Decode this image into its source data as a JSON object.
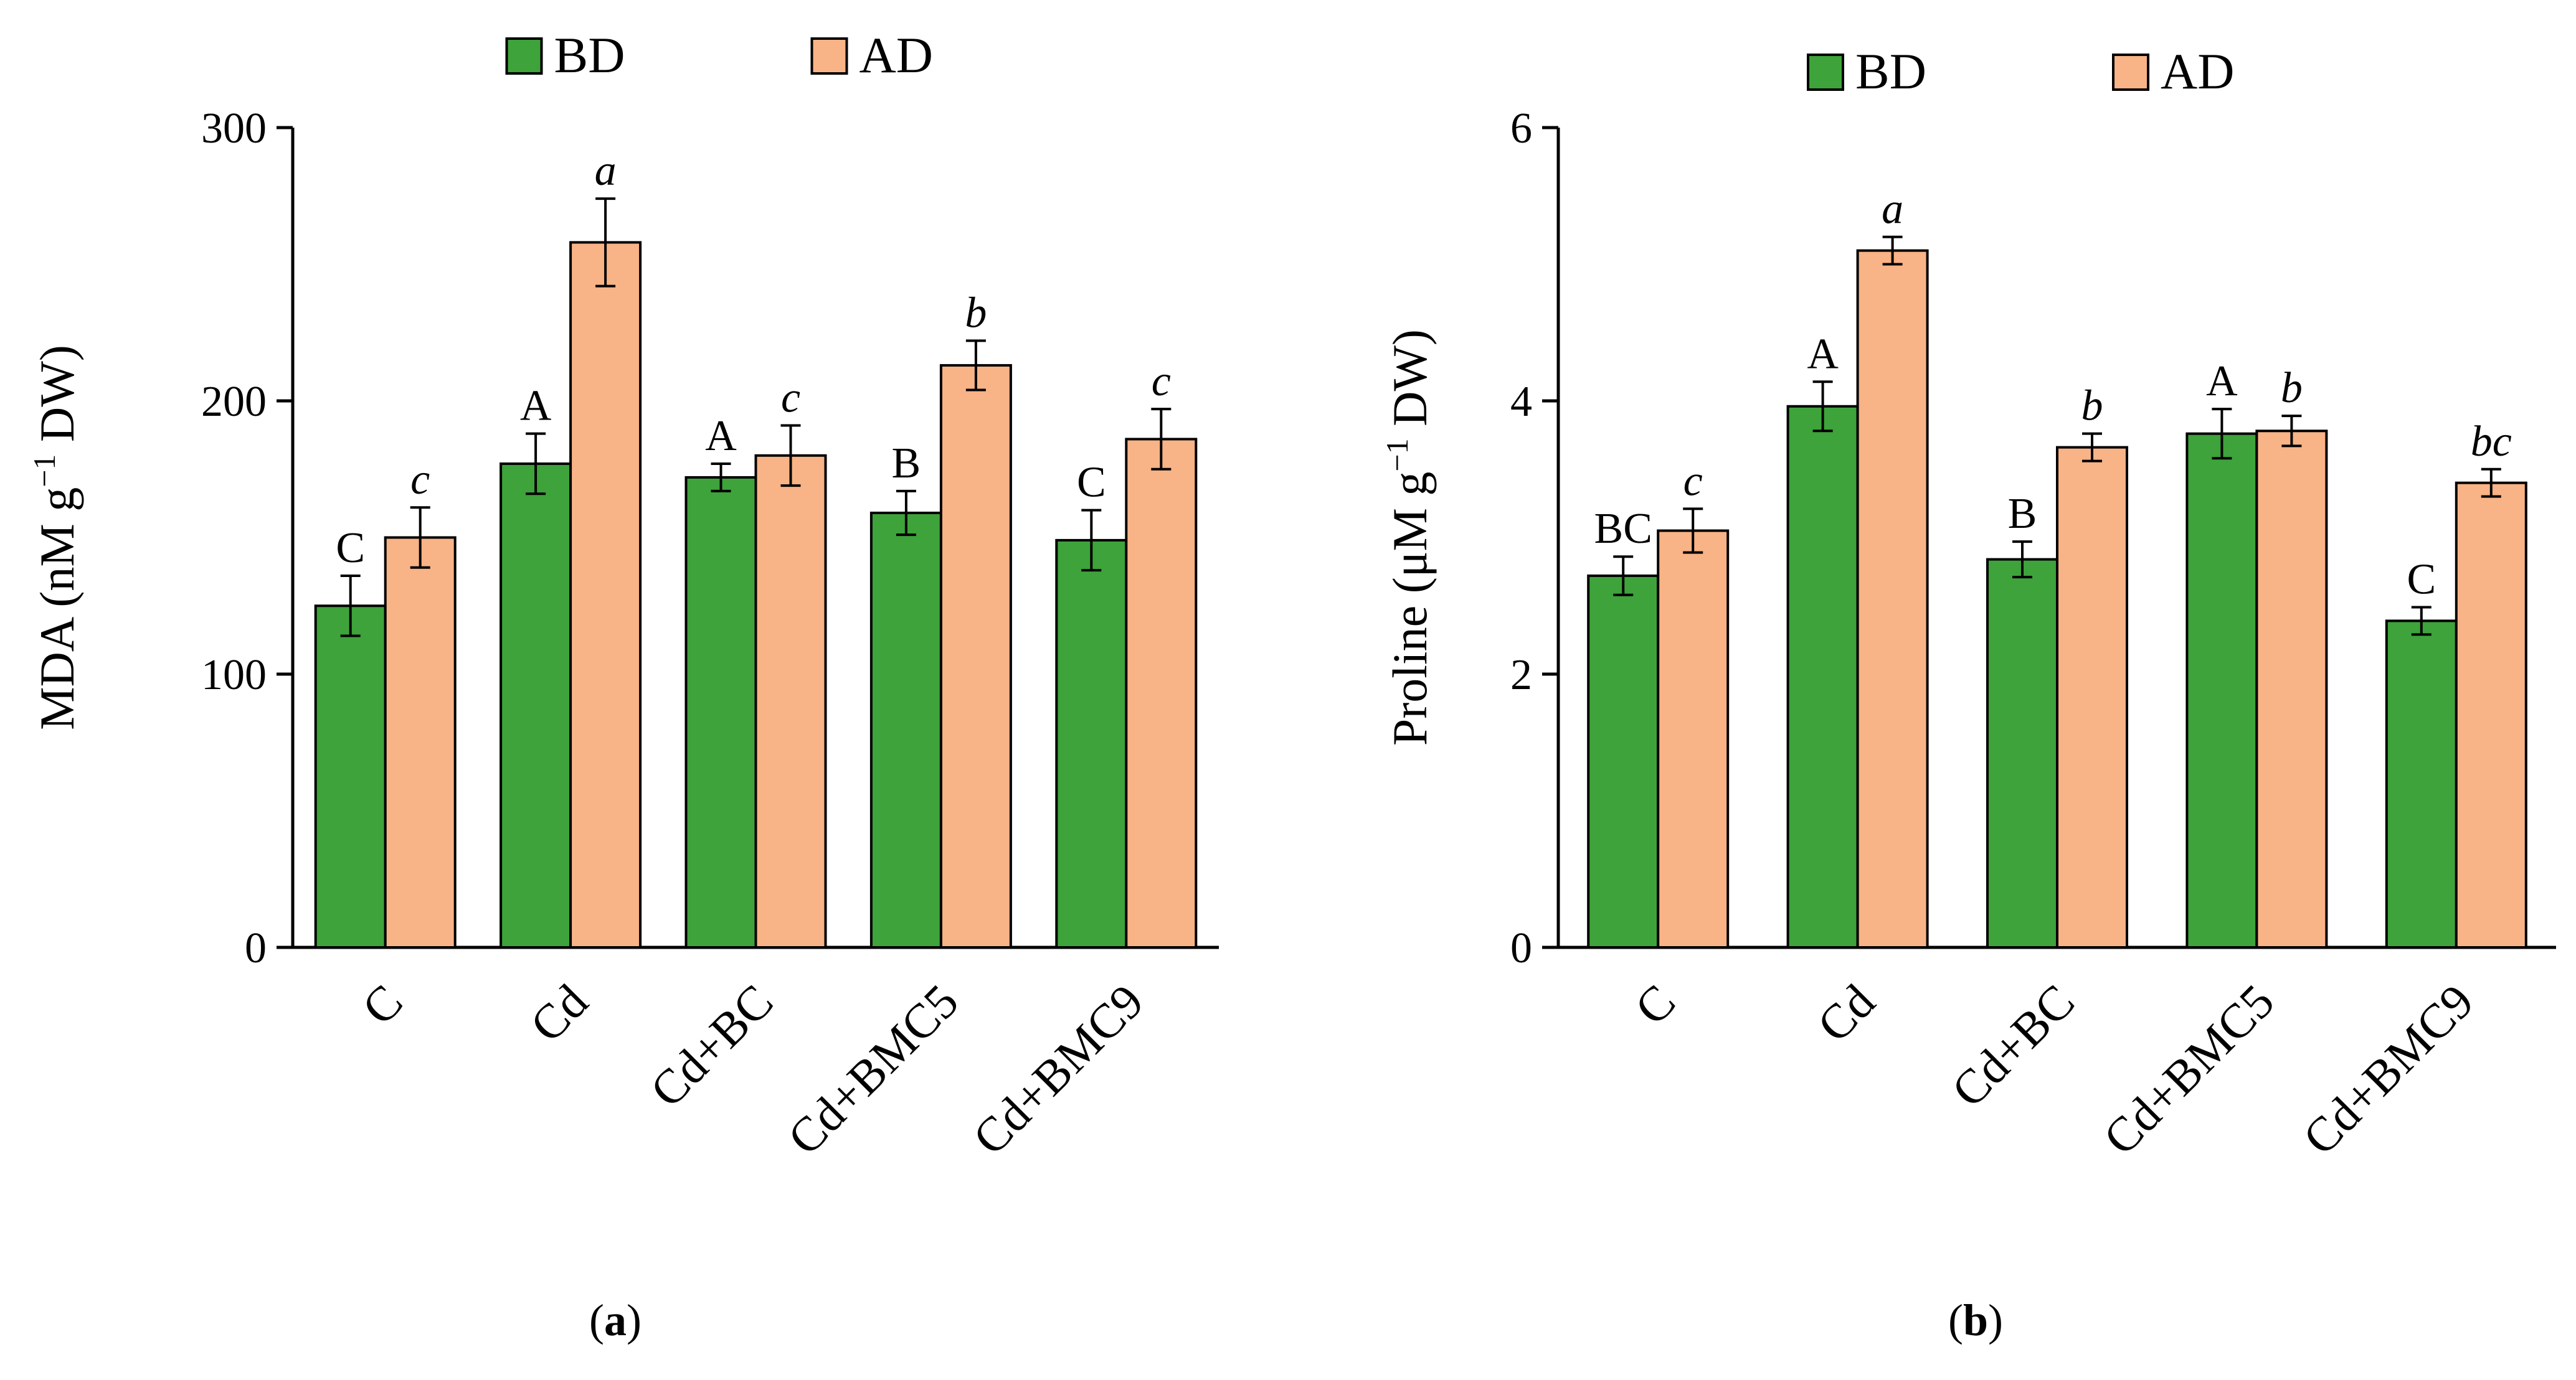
{
  "colors": {
    "bd_fill": "#3da33a",
    "ad_fill": "#f8b386",
    "bar_stroke": "#000000",
    "axis": "#000000"
  },
  "chart_data": [
    {
      "type": "bar",
      "panel_label": "a",
      "categories": [
        "C",
        "Cd",
        "Cd+BC",
        "Cd+BMC5",
        "Cd+BMC9"
      ],
      "ylabel_main": "MDA (nM g",
      "ylabel_sup": "−1",
      "ylabel_end": " DW)",
      "ylim": [
        0,
        300
      ],
      "yticks": [
        0,
        100,
        200,
        300
      ],
      "legend": [
        "BD",
        "AD"
      ],
      "legend_position": "top-center",
      "series": [
        {
          "name": "BD",
          "values": [
            125,
            177,
            172,
            159,
            149
          ],
          "errors": [
            11,
            11,
            5,
            8,
            11
          ],
          "letters": [
            "C",
            "A",
            "A",
            "B",
            "C"
          ],
          "letter_style": "upright"
        },
        {
          "name": "AD",
          "values": [
            150,
            258,
            180,
            213,
            186
          ],
          "errors": [
            11,
            16,
            11,
            9,
            11
          ],
          "letters": [
            "c",
            "a",
            "c",
            "b",
            "c"
          ],
          "letter_style": "italic"
        }
      ]
    },
    {
      "type": "bar",
      "panel_label": "b",
      "categories": [
        "C",
        "Cd",
        "Cd+BC",
        "Cd+BMC5",
        "Cd+BMC9"
      ],
      "ylabel_main": "Proline (μM g",
      "ylabel_sup": "−1",
      "ylabel_end": " DW)",
      "ylim": [
        0,
        6
      ],
      "yticks": [
        0,
        2,
        4,
        6
      ],
      "legend": [
        "BD",
        "AD"
      ],
      "legend_position": "top-center",
      "series": [
        {
          "name": "BD",
          "values": [
            2.72,
            3.96,
            2.84,
            3.76,
            2.39
          ],
          "errors": [
            0.14,
            0.18,
            0.13,
            0.18,
            0.1
          ],
          "letters": [
            "BC",
            "A",
            "B",
            "A",
            "C"
          ],
          "letter_style": "upright"
        },
        {
          "name": "AD",
          "values": [
            3.05,
            5.1,
            3.66,
            3.78,
            3.4
          ],
          "errors": [
            0.16,
            0.1,
            0.1,
            0.11,
            0.1
          ],
          "letters": [
            "c",
            "a",
            "b",
            "b",
            "bc"
          ],
          "letter_style": "italic"
        }
      ]
    }
  ]
}
